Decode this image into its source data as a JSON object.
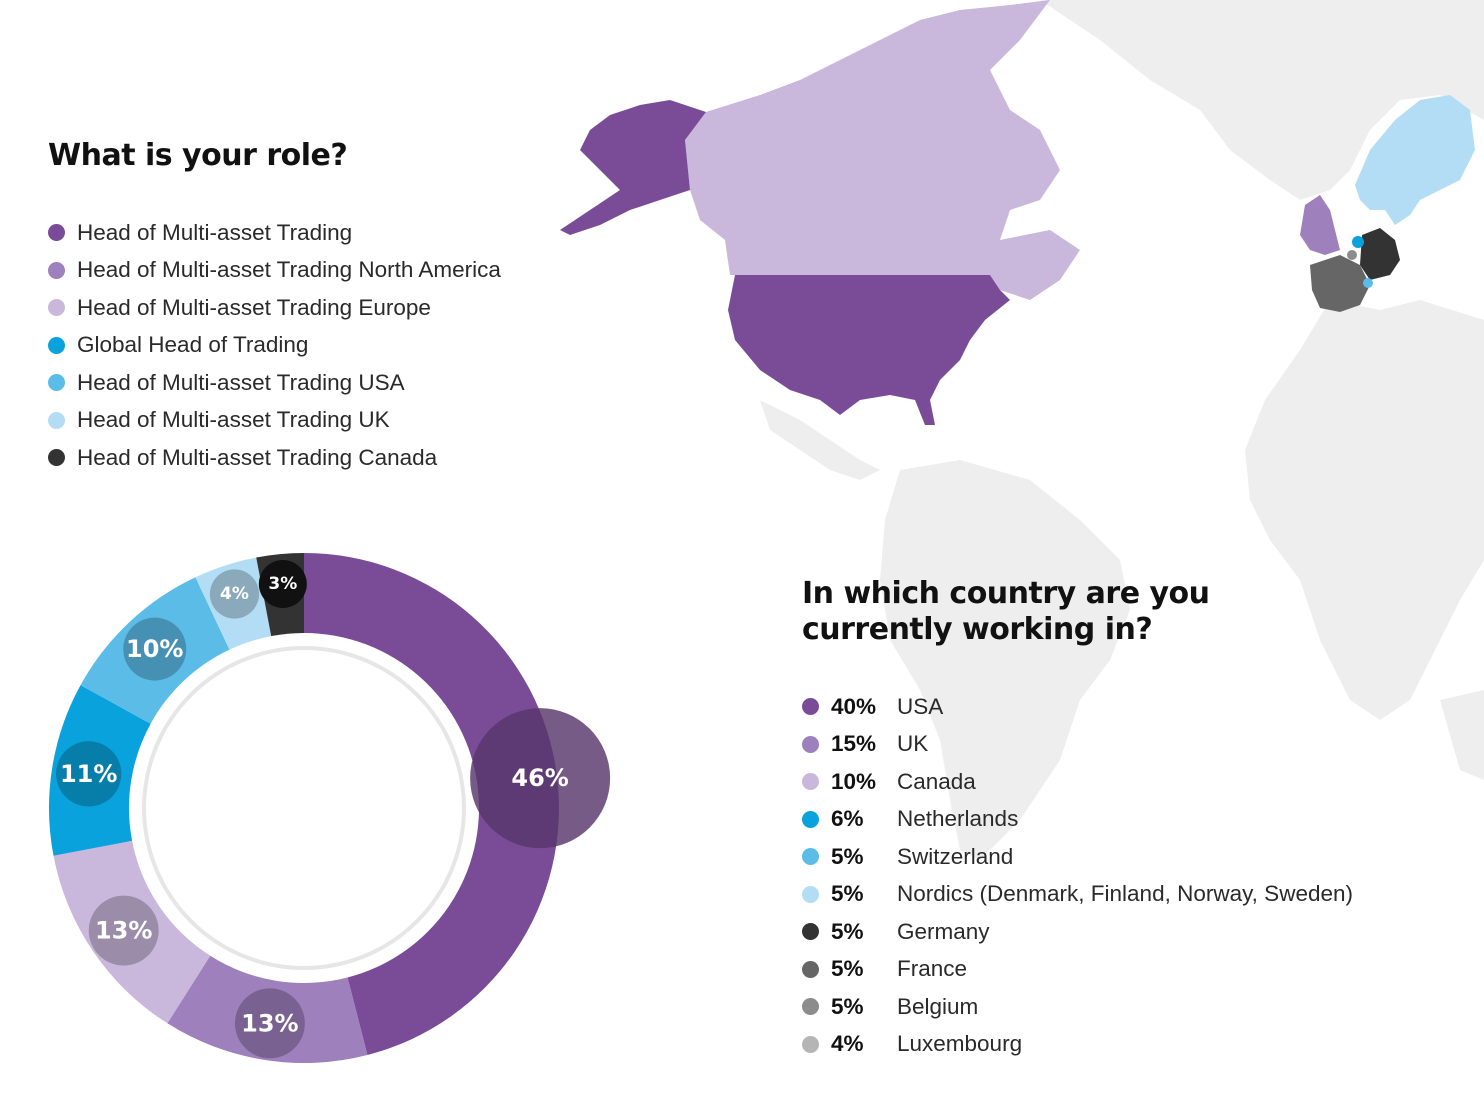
{
  "role_question": "What is your role?",
  "country_question": "In which country are you currently working in?",
  "colors": {
    "purple_dark": "#7a4c98",
    "purple_mid": "#9d80bc",
    "purple_light": "#c9b8db",
    "blue_dark": "#0aa2dc",
    "blue_mid": "#5bbce8",
    "blue_light": "#b3ddf4",
    "charcoal": "#333333",
    "grey_dark": "#666666",
    "grey_mid": "#8c8c8c",
    "grey_light": "#b5b5b5",
    "map_land": "#eeeeee"
  },
  "chart_data": [
    {
      "type": "pie",
      "variant": "donut",
      "title": "What is your role?",
      "series": [
        {
          "name": "Head of Multi-asset Trading",
          "value": 46,
          "label": "46%",
          "color": "#7a4c98"
        },
        {
          "name": "Head of Multi-asset Trading North America",
          "value": 13,
          "label": "13%",
          "color": "#9d80bc"
        },
        {
          "name": "Head of Multi-asset Trading Europe",
          "value": 13,
          "label": "13%",
          "color": "#c9b8db"
        },
        {
          "name": "Global Head of Trading",
          "value": 11,
          "label": "11%",
          "color": "#0aa2dc"
        },
        {
          "name": "Head of Multi-asset Trading USA",
          "value": 10,
          "label": "10%",
          "color": "#5bbce8"
        },
        {
          "name": "Head of Multi-asset Trading UK",
          "value": 4,
          "label": "4%",
          "color": "#b3ddf4"
        },
        {
          "name": "Head of Multi-asset Trading Canada",
          "value": 3,
          "label": "3%",
          "color": "#333333"
        }
      ]
    },
    {
      "type": "table",
      "title": "In which country are you currently working in?",
      "rows": [
        {
          "value": 40,
          "label": "40%",
          "country": "USA",
          "color": "#7a4c98"
        },
        {
          "value": 15,
          "label": "15%",
          "country": "UK",
          "color": "#9d80bc"
        },
        {
          "value": 10,
          "label": "10%",
          "country": "Canada",
          "color": "#c9b8db"
        },
        {
          "value": 6,
          "label": "6%",
          "country": "Netherlands",
          "color": "#0aa2dc"
        },
        {
          "value": 5,
          "label": "5%",
          "country": "Switzerland",
          "color": "#5bbce8"
        },
        {
          "value": 5,
          "label": "5%",
          "country": "Nordics (Denmark, Finland, Norway, Sweden)",
          "color": "#b3ddf4"
        },
        {
          "value": 5,
          "label": "5%",
          "country": "Germany",
          "color": "#333333"
        },
        {
          "value": 5,
          "label": "5%",
          "country": "France",
          "color": "#666666"
        },
        {
          "value": 5,
          "label": "5%",
          "country": "Belgium",
          "color": "#8c8c8c"
        },
        {
          "value": 4,
          "label": "4%",
          "country": "Luxembourg",
          "color": "#b5b5b5"
        }
      ]
    }
  ]
}
